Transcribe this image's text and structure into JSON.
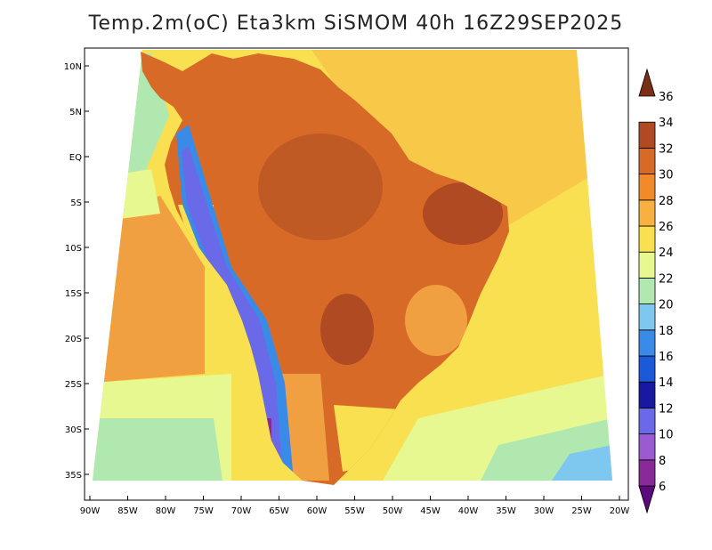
{
  "title": "Temp.2m(oC) Eta3km SiSMOM 40h 16Z29SEP2025",
  "map": {
    "lat_labels": [
      "10N",
      "5N",
      "EQ",
      "5S",
      "10S",
      "15S",
      "20S",
      "25S",
      "30S",
      "35S"
    ],
    "lon_labels": [
      "90W",
      "85W",
      "80W",
      "75W",
      "70W",
      "65W",
      "60W",
      "55W",
      "50W",
      "45W",
      "40W",
      "35W",
      "30W",
      "25W",
      "20W"
    ]
  },
  "colorbar": {
    "labels": [
      "6",
      "8",
      "10",
      "12",
      "14",
      "16",
      "18",
      "20",
      "22",
      "24",
      "26",
      "28",
      "30",
      "32",
      "34",
      "36"
    ],
    "colors": [
      "#5a0a7a",
      "#8a2a9a",
      "#9a5ad0",
      "#6a6ae8",
      "#1818a0",
      "#1a5ad8",
      "#3a8ae8",
      "#7ec8f0",
      "#b0e8b0",
      "#e8f890",
      "#f8e050",
      "#f8b040",
      "#f08a2a",
      "#d86a28",
      "#b04a22",
      "#7a2e16"
    ]
  }
}
